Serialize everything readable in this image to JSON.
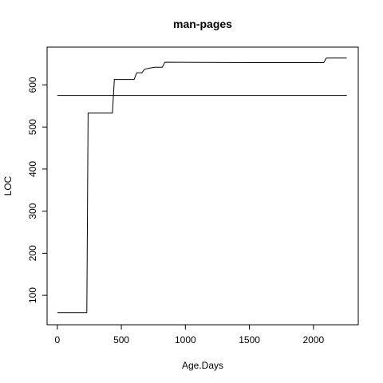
{
  "chart_data": {
    "type": "line",
    "title": "man-pages",
    "xlabel": "Age.Days",
    "ylabel": "LOC",
    "xlim": [
      -80,
      2350
    ],
    "ylim": [
      30,
      690
    ],
    "xticks": [
      0,
      500,
      1000,
      1500,
      2000
    ],
    "yticks": [
      100,
      200,
      300,
      400,
      500,
      600
    ],
    "grid": false,
    "legend": "none",
    "series": [
      {
        "kind": "step",
        "x": [
          0,
          230,
          240,
          430,
          445,
          600,
          620,
          660,
          680,
          720,
          760,
          820,
          840,
          1520,
          2080,
          2100,
          2260
        ],
        "y": [
          59,
          59,
          533,
          533,
          613,
          613,
          629,
          629,
          637,
          640,
          642,
          642,
          654,
          653,
          653,
          664,
          664
        ]
      },
      {
        "kind": "hline",
        "x": [
          0,
          2260
        ],
        "y": [
          575,
          575
        ]
      }
    ]
  }
}
